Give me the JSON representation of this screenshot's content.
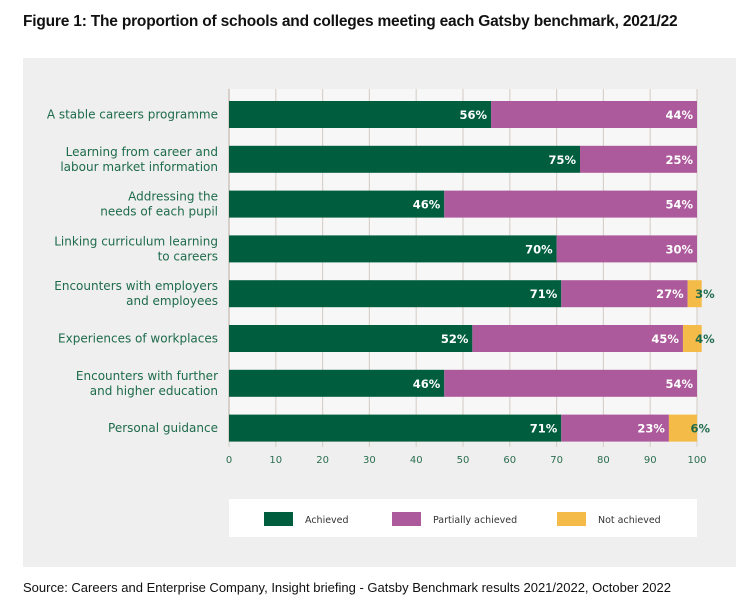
{
  "figure": {
    "title": "Figure 1: The proportion of schools and colleges meeting each Gatsby benchmark, 2021/22",
    "source": "Source: Careers and Enterprise Company, Insight briefing - Gatsby Benchmark results 2021/2022, October 2022"
  },
  "chart_data": {
    "type": "bar",
    "orientation": "horizontal",
    "stacked": true,
    "title": "The proportion of schools and colleges meeting each Gatsby benchmark, 2021/22",
    "xlabel": "",
    "ylabel": "",
    "xlim": [
      0,
      100
    ],
    "xticks": [
      0,
      10,
      20,
      30,
      40,
      50,
      60,
      70,
      80,
      90,
      100
    ],
    "grid": true,
    "legend_position": "bottom",
    "categories": [
      [
        "A stable careers programme"
      ],
      [
        "Learning from career and",
        "labour market information"
      ],
      [
        "Addressing the",
        "needs of each pupil"
      ],
      [
        "Linking curriculum learning",
        "to careers"
      ],
      [
        "Encounters with employers",
        "and employees"
      ],
      [
        "Experiences of workplaces"
      ],
      [
        "Encounters with further",
        "and higher education"
      ],
      [
        "Personal guidance"
      ]
    ],
    "series": [
      {
        "name": "Achieved",
        "color": "#005e3e",
        "values": [
          56,
          75,
          46,
          70,
          71,
          52,
          46,
          71
        ]
      },
      {
        "name": "Partially achieved",
        "color": "#ac5a9c",
        "values": [
          44,
          25,
          54,
          30,
          27,
          45,
          54,
          23
        ]
      },
      {
        "name": "Not achieved",
        "color": "#f4bb48",
        "values": [
          0,
          0,
          0,
          0,
          3,
          4,
          0,
          6
        ]
      }
    ],
    "value_label_suffix": "%"
  }
}
